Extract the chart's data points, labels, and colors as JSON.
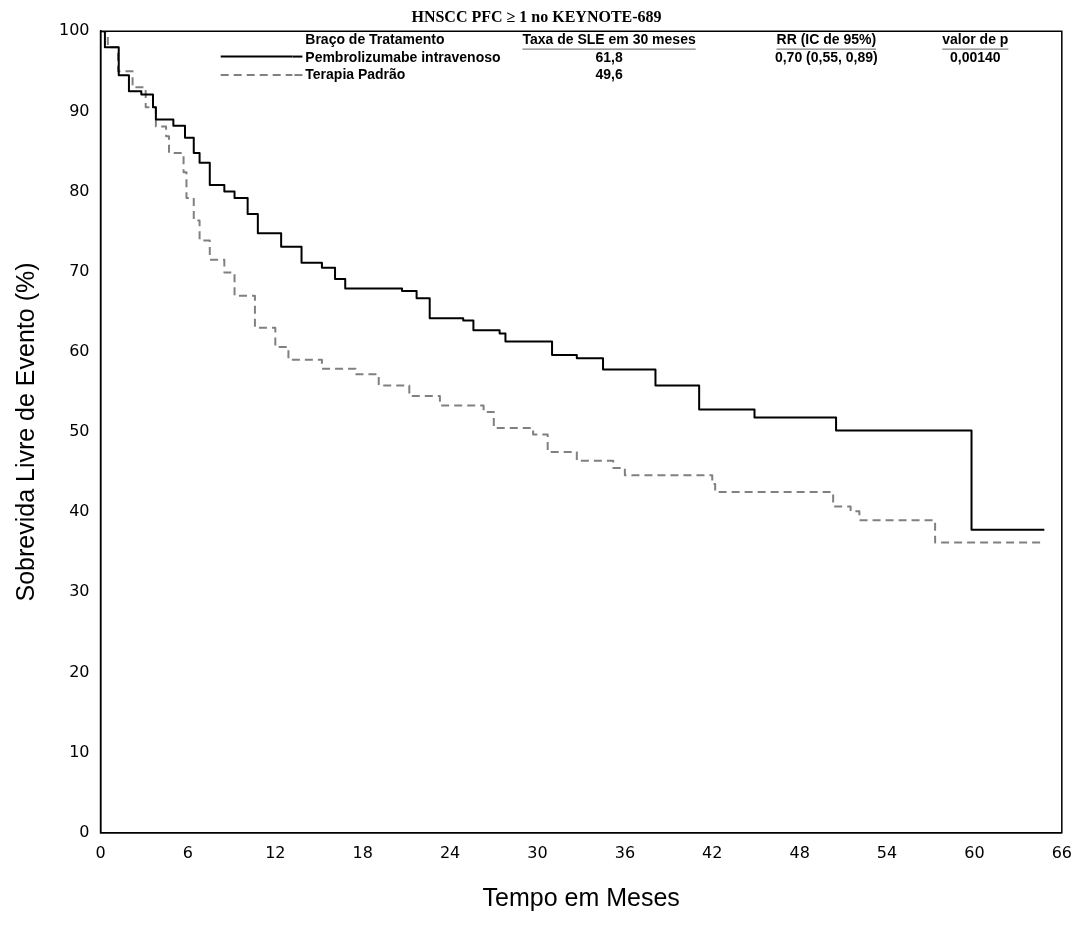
{
  "chart_data": {
    "type": "step",
    "title": "HNSCC PFC ≥ 1 no KEYNOTE-689",
    "xlabel": "Tempo em Meses",
    "ylabel": "Sobrevida Livre de Evento (%)",
    "legend_title": "Braço de Tratamento",
    "legend": "top",
    "grid": false,
    "marker": "none",
    "xlim": [
      0,
      66
    ],
    "xticks": [
      0,
      6,
      12,
      18,
      24,
      30,
      36,
      42,
      48,
      54,
      60,
      66
    ],
    "ylim": [
      0,
      100
    ],
    "yticks": [
      0,
      10,
      20,
      30,
      40,
      50,
      60,
      70,
      80,
      90,
      100
    ],
    "annotations": [
      "Taxa de SLE em 30 meses",
      "RR (IC de 95%)",
      "valor de p",
      "61,8",
      "0,70 (0,55, 0,89)",
      "0,00140",
      "49,6"
    ],
    "series": [
      {
        "name": "Pembrolizumabe intravenoso",
        "color": "#000000",
        "line_style": "solid",
        "x": [
          0,
          0.3,
          1.25,
          1.95,
          2.8,
          3.6,
          3.8,
          5,
          5.8,
          6.4,
          6.8,
          7.5,
          8.5,
          9.2,
          10.1,
          10.8,
          12.4,
          13.8,
          15.2,
          16.1,
          16.8,
          20.7,
          21.7,
          22.6,
          24.9,
          25.6,
          27.4,
          27.8,
          31,
          32.7,
          34.5,
          38.1,
          41.1,
          44.9,
          50.5,
          59.8,
          64.8
        ],
        "values": [
          100,
          98,
          94.5,
          92.5,
          92.1,
          90.5,
          89,
          88.2,
          86.7,
          84.8,
          83.6,
          80.8,
          80,
          79.2,
          77.2,
          74.8,
          73.1,
          71.1,
          70.5,
          69.1,
          67.9,
          67.6,
          66.7,
          64.2,
          63.9,
          62.7,
          62.3,
          61.3,
          59.6,
          59.2,
          57.8,
          55.8,
          52.8,
          51.8,
          50.2,
          37.8,
          37.8
        ]
      },
      {
        "name": "Terapia Padrão",
        "color": "#808080",
        "line_style": "dashed",
        "x": [
          0,
          0.5,
          1.2,
          2.2,
          3.1,
          3.8,
          4.5,
          4.7,
          5.7,
          5.9,
          6.4,
          6.8,
          7.5,
          8.5,
          9.2,
          10.6,
          12,
          12.9,
          15.2,
          17.5,
          19.1,
          21.2,
          23.3,
          26.3,
          27,
          29.7,
          30.7,
          32.7,
          35.2,
          36,
          42,
          42.2,
          50.3,
          51.5,
          52.1,
          57.3,
          64.7
        ],
        "values": [
          100,
          98,
          95,
          93,
          90.5,
          88.1,
          86.9,
          84.8,
          82.4,
          79.2,
          76.4,
          73.9,
          71.5,
          69.9,
          67,
          63,
          60.6,
          59,
          57.9,
          57.2,
          55.8,
          54.5,
          53.3,
          52.5,
          50.5,
          49.7,
          47.5,
          46.4,
          45.5,
          44.6,
          43.5,
          42.5,
          40.7,
          40.1,
          39,
          36.2,
          36.2
        ]
      }
    ]
  }
}
